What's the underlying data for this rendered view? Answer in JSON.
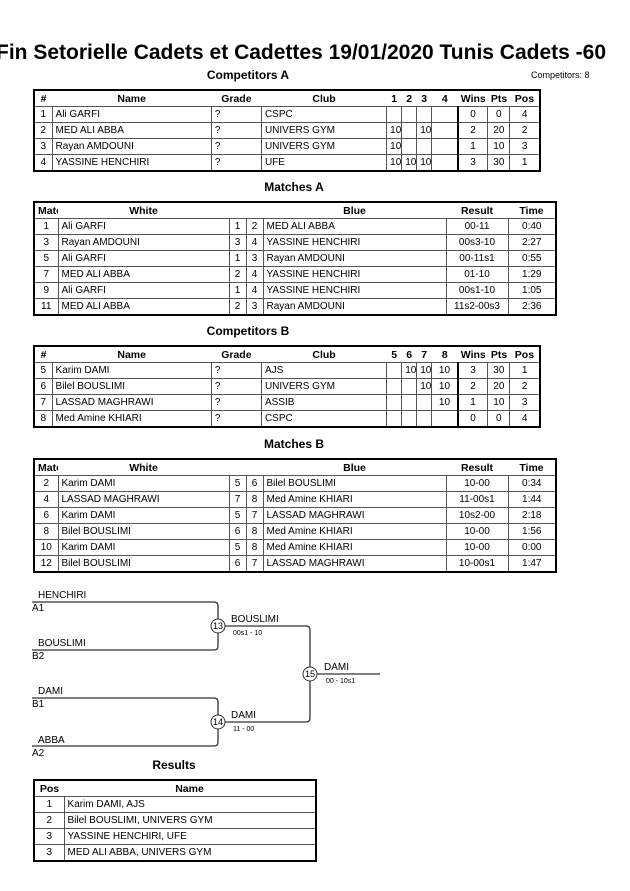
{
  "title": "Fin Setorielle Cadets et Cadettes  19/01/2020  Tunis   Cadets -60",
  "competitors_count": "Competitors: 8",
  "competitors_a": {
    "heading": "Competitors A",
    "headers": [
      "#",
      "Name",
      "Grade",
      "Club",
      "1",
      "2",
      "3",
      "4",
      "Wins",
      "Pts",
      "Pos"
    ],
    "rows": [
      [
        "1",
        "Ali GARFI",
        "?",
        "CSPC",
        "",
        "",
        "",
        "",
        "0",
        "0",
        "4"
      ],
      [
        "2",
        "MED ALI ABBA",
        "?",
        "UNIVERS GYM",
        "10",
        "",
        "10",
        "",
        "2",
        "20",
        "2"
      ],
      [
        "3",
        "Rayan AMDOUNI",
        "?",
        "UNIVERS GYM",
        "10",
        "",
        "",
        "",
        "1",
        "10",
        "3"
      ],
      [
        "4",
        "YASSINE HENCHIRI",
        "?",
        "UFE",
        "10",
        "10",
        "10",
        "",
        "3",
        "30",
        "1"
      ]
    ]
  },
  "matches_a": {
    "heading": "Matches A",
    "headers": [
      "Match",
      "White",
      "",
      "",
      "Blue",
      "Result",
      "Time"
    ],
    "rows": [
      [
        "1",
        "Ali GARFI",
        "1",
        "2",
        "MED ALI ABBA",
        "00-11",
        "0:40"
      ],
      [
        "3",
        "Rayan AMDOUNI",
        "3",
        "4",
        "YASSINE HENCHIRI",
        "00s3-10",
        "2:27"
      ],
      [
        "5",
        "Ali GARFI",
        "1",
        "3",
        "Rayan AMDOUNI",
        "00-11s1",
        "0:55"
      ],
      [
        "7",
        "MED ALI ABBA",
        "2",
        "4",
        "YASSINE HENCHIRI",
        "01-10",
        "1:29"
      ],
      [
        "9",
        "Ali GARFI",
        "1",
        "4",
        "YASSINE HENCHIRI",
        "00s1-10",
        "1:05"
      ],
      [
        "11",
        "MED ALI ABBA",
        "2",
        "3",
        "Rayan AMDOUNI",
        "11s2-00s3",
        "2:36"
      ]
    ]
  },
  "competitors_b": {
    "heading": "Competitors B",
    "headers": [
      "#",
      "Name",
      "Grade",
      "Club",
      "5",
      "6",
      "7",
      "8",
      "Wins",
      "Pts",
      "Pos"
    ],
    "rows": [
      [
        "5",
        "Karim DAMI",
        "?",
        "AJS",
        "",
        "10",
        "10",
        "10",
        "3",
        "30",
        "1"
      ],
      [
        "6",
        "Bilel BOUSLIMI",
        "?",
        "UNIVERS GYM",
        "",
        "",
        "10",
        "10",
        "2",
        "20",
        "2"
      ],
      [
        "7",
        "LASSAD MAGHRAWI",
        "?",
        "ASSIB",
        "",
        "",
        "",
        "10",
        "1",
        "10",
        "3"
      ],
      [
        "8",
        "Med Amine KHIARI",
        "?",
        "CSPC",
        "",
        "",
        "",
        "",
        "0",
        "0",
        "4"
      ]
    ]
  },
  "matches_b": {
    "heading": "Matches B",
    "headers": [
      "Match",
      "White",
      "",
      "",
      "Blue",
      "Result",
      "Time"
    ],
    "rows": [
      [
        "2",
        "Karim DAMI",
        "5",
        "6",
        "Bilel BOUSLIMI",
        "10-00",
        "0:34"
      ],
      [
        "4",
        "LASSAD MAGHRAWI",
        "7",
        "8",
        "Med Amine KHIARI",
        "11-00s1",
        "1:44"
      ],
      [
        "6",
        "Karim DAMI",
        "5",
        "7",
        "LASSAD MAGHRAWI",
        "10s2-00",
        "2:18"
      ],
      [
        "8",
        "Bilel BOUSLIMI",
        "6",
        "8",
        "Med Amine KHIARI",
        "10-00",
        "1:56"
      ],
      [
        "10",
        "Karim DAMI",
        "5",
        "8",
        "Med Amine KHIARI",
        "10-00",
        "0:00"
      ],
      [
        "12",
        "Bilel BOUSLIMI",
        "6",
        "7",
        "LASSAD MAGHRAWI",
        "10-00s1",
        "1:47"
      ]
    ]
  },
  "bracket": {
    "s1": {
      "name": "HENCHIRI",
      "seed": "A1"
    },
    "s2": {
      "name": "BOUSLIMI",
      "seed": "B2"
    },
    "s3": {
      "name": "DAMI",
      "seed": "B1"
    },
    "s4": {
      "name": "ABBA",
      "seed": "A2"
    },
    "m13": {
      "num": "13",
      "winner": "BOUSLIMI",
      "score": "00s1 - 10"
    },
    "m14": {
      "num": "14",
      "winner": "DAMI",
      "score": "11 - 00"
    },
    "m15": {
      "num": "15",
      "winner": "DAMI",
      "score": "00 - 10s1"
    }
  },
  "results": {
    "heading": "Results",
    "headers": [
      "Pos",
      "Name"
    ],
    "rows": [
      [
        "1",
        "Karim DAMI, AJS"
      ],
      [
        "2",
        "Bilel BOUSLIMI, UNIVERS GYM"
      ],
      [
        "3",
        "YASSINE HENCHIRI, UFE"
      ],
      [
        "3",
        "MED ALI ABBA, UNIVERS GYM"
      ]
    ]
  }
}
